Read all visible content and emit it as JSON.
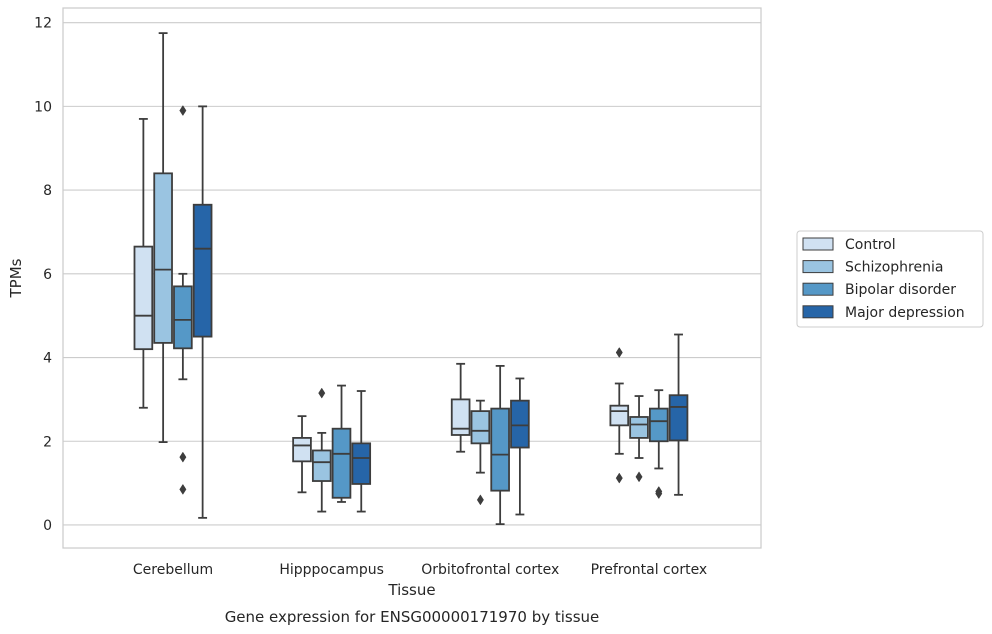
{
  "caption": "Gene expression for ENSG00000171970 by tissue",
  "chart_data": {
    "type": "box",
    "xlabel": "Tissue",
    "ylabel": "TPMs",
    "ylim": [
      -0.55,
      12.35
    ],
    "yticks": [
      0,
      2,
      4,
      6,
      8,
      10,
      12
    ],
    "grid": "horizontal",
    "legend_position": "right",
    "categories": [
      "Cerebellum",
      "Hipppocampus",
      "Orbitofrontal cortex",
      "Prefrontal cortex"
    ],
    "series": [
      {
        "name": "Control",
        "color": "#d0e1f2",
        "boxes": [
          {
            "whislo": 2.8,
            "q1": 4.2,
            "med": 5.0,
            "q3": 6.65,
            "whishi": 9.7,
            "fliers": []
          },
          {
            "whislo": 0.78,
            "q1": 1.52,
            "med": 1.9,
            "q3": 2.08,
            "whishi": 2.6,
            "fliers": []
          },
          {
            "whislo": 1.75,
            "q1": 2.15,
            "med": 2.3,
            "q3": 3.0,
            "whishi": 3.85,
            "fliers": []
          },
          {
            "whislo": 1.7,
            "q1": 2.38,
            "med": 2.72,
            "q3": 2.85,
            "whishi": 3.38,
            "fliers": [
              1.12,
              4.12
            ]
          }
        ]
      },
      {
        "name": "Schizophrenia",
        "color": "#9ac4e1",
        "boxes": [
          {
            "whislo": 1.98,
            "q1": 4.35,
            "med": 6.1,
            "q3": 8.4,
            "whishi": 11.75,
            "fliers": []
          },
          {
            "whislo": 0.32,
            "q1": 1.05,
            "med": 1.5,
            "q3": 1.78,
            "whishi": 2.2,
            "fliers": [
              3.15
            ]
          },
          {
            "whislo": 1.25,
            "q1": 1.95,
            "med": 2.25,
            "q3": 2.72,
            "whishi": 2.97,
            "fliers": [
              0.6
            ]
          },
          {
            "whislo": 1.6,
            "q1": 2.08,
            "med": 2.4,
            "q3": 2.58,
            "whishi": 3.08,
            "fliers": [
              1.15
            ]
          }
        ]
      },
      {
        "name": "Bipolar disorder",
        "color": "#5598c7",
        "boxes": [
          {
            "whislo": 3.48,
            "q1": 4.22,
            "med": 4.9,
            "q3": 5.7,
            "whishi": 6.0,
            "fliers": [
              9.9,
              1.62,
              0.85
            ]
          },
          {
            "whislo": 0.55,
            "q1": 0.65,
            "med": 1.7,
            "q3": 2.3,
            "whishi": 3.33,
            "fliers": []
          },
          {
            "whislo": 0.02,
            "q1": 0.82,
            "med": 1.68,
            "q3": 2.78,
            "whishi": 3.8,
            "fliers": []
          },
          {
            "whislo": 1.35,
            "q1": 2.0,
            "med": 2.48,
            "q3": 2.78,
            "whishi": 3.22,
            "fliers": [
              0.8,
              0.75
            ]
          }
        ]
      },
      {
        "name": "Major depression",
        "color": "#2665a8",
        "boxes": [
          {
            "whislo": 0.17,
            "q1": 4.5,
            "med": 6.6,
            "q3": 7.65,
            "whishi": 10.0,
            "fliers": []
          },
          {
            "whislo": 0.32,
            "q1": 0.98,
            "med": 1.6,
            "q3": 1.95,
            "whishi": 3.2,
            "fliers": []
          },
          {
            "whislo": 0.25,
            "q1": 1.85,
            "med": 2.38,
            "q3": 2.97,
            "whishi": 3.5,
            "fliers": []
          },
          {
            "whislo": 0.72,
            "q1": 2.02,
            "med": 2.82,
            "q3": 3.1,
            "whishi": 4.55,
            "fliers": []
          }
        ]
      }
    ]
  }
}
